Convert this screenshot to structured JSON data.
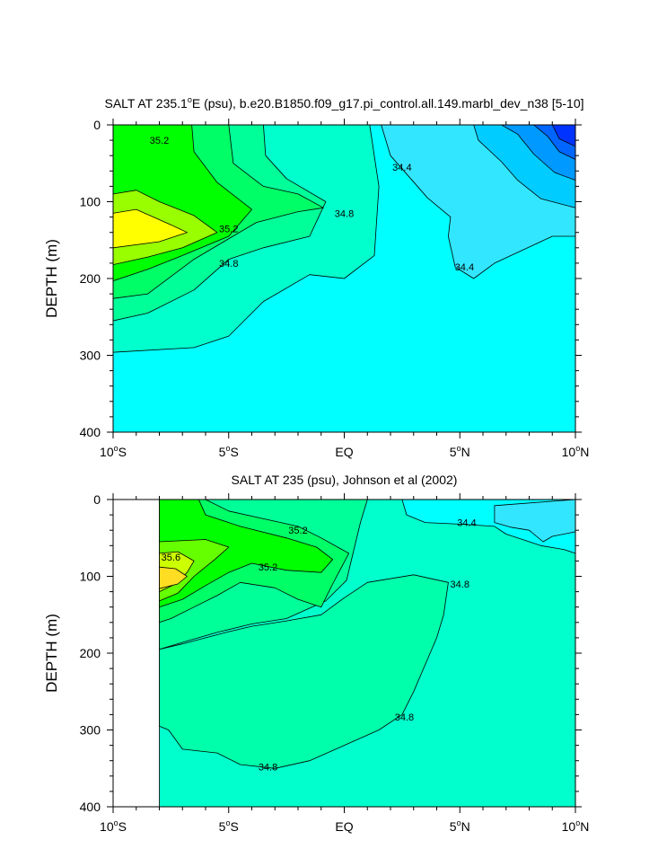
{
  "chart_data": [
    {
      "type": "heatmap",
      "title": "SALT AT 235.1°E (psu), b.e20.B1850.f09_g17.pi_control.all.149.marbl_dev_n38 [5-10]",
      "title_main": "SALT AT 235.1",
      "title_deg": "o",
      "title_rest": "E (psu), b.e20.B1850.f09_g17.pi_control.all.149.marbl_dev_n38 [5-10]",
      "ylabel": "DEPTH (m)",
      "xlabel": "",
      "xlim": [
        -10,
        10
      ],
      "ylim": [
        400,
        0
      ],
      "x_ticks": [
        {
          "v": -10,
          "num": "10",
          "sup": "o",
          "dir": "S"
        },
        {
          "v": -5,
          "num": "5",
          "sup": "o",
          "dir": "S"
        },
        {
          "v": 0,
          "num": "EQ",
          "sup": "",
          "dir": ""
        },
        {
          "v": 5,
          "num": "5",
          "sup": "o",
          "dir": "N"
        },
        {
          "v": 10,
          "num": "10",
          "sup": "o",
          "dir": "N"
        }
      ],
      "y_ticks": [
        {
          "v": 0,
          "label": "0"
        },
        {
          "v": 100,
          "label": "100"
        },
        {
          "v": 200,
          "label": "200"
        },
        {
          "v": 300,
          "label": "300"
        },
        {
          "v": 400,
          "label": "400"
        }
      ],
      "contour_labels": [
        {
          "text": "35.2",
          "x": -8.0,
          "y": 20
        },
        {
          "text": "35.2",
          "x": -5.0,
          "y": 135
        },
        {
          "text": "34.8",
          "x": -5.0,
          "y": 180
        },
        {
          "text": "34.8",
          "x": 0.0,
          "y": 115
        },
        {
          "text": "34.4",
          "x": 2.5,
          "y": 55
        },
        {
          "text": "34.4",
          "x": 5.2,
          "y": 185
        }
      ],
      "regions": [
        {
          "color": "#00ffff",
          "points": [
            [
              -10,
              0
            ],
            [
              10,
              0
            ],
            [
              10,
              400
            ],
            [
              -10,
              400
            ]
          ]
        },
        {
          "color": "#00ffcc",
          "points": [
            [
              -10,
              0
            ],
            [
              1.1,
              0
            ],
            [
              1.5,
              80
            ],
            [
              1.3,
              170
            ],
            [
              0,
              200
            ],
            [
              -1.5,
              195
            ],
            [
              -3.5,
              230
            ],
            [
              -5,
              275
            ],
            [
              -6.5,
              290
            ],
            [
              -10,
              296
            ]
          ]
        },
        {
          "color": "#00ff99",
          "points": [
            [
              -10,
              0
            ],
            [
              -3.5,
              0
            ],
            [
              -3.4,
              40
            ],
            [
              -2.5,
              70
            ],
            [
              -0.8,
              100
            ],
            [
              -1.5,
              145
            ],
            [
              -3.5,
              160
            ],
            [
              -5,
              175
            ],
            [
              -6.5,
              215
            ],
            [
              -8.5,
              245
            ],
            [
              -10,
              255
            ]
          ]
        },
        {
          "color": "#00ff66",
          "points": [
            [
              -10,
              0
            ],
            [
              -5,
              0
            ],
            [
              -4.8,
              50
            ],
            [
              -3.5,
              80
            ],
            [
              -2,
              90
            ],
            [
              -0.9,
              108
            ],
            [
              -2,
              113
            ],
            [
              -3.8,
              127
            ],
            [
              -6.5,
              175
            ],
            [
              -8.5,
              220
            ],
            [
              -10,
              226
            ]
          ]
        },
        {
          "color": "#00ff00",
          "points": [
            [
              -10,
              0
            ],
            [
              -6.6,
              0
            ],
            [
              -6.5,
              35
            ],
            [
              -5.5,
              75
            ],
            [
              -4,
              110
            ],
            [
              -5,
              145
            ],
            [
              -7,
              170
            ],
            [
              -8.5,
              188
            ],
            [
              -10,
              203
            ]
          ]
        },
        {
          "color": "#99ff00",
          "points": [
            [
              -10,
              90
            ],
            [
              -9,
              85
            ],
            [
              -8,
              100
            ],
            [
              -6.5,
              118
            ],
            [
              -5.5,
              140
            ],
            [
              -7,
              160
            ],
            [
              -8.5,
              172
            ],
            [
              -10,
              182
            ]
          ]
        },
        {
          "color": "#ffff00",
          "points": [
            [
              -10,
              115
            ],
            [
              -9,
              110
            ],
            [
              -7.5,
              130
            ],
            [
              -6.8,
              140
            ],
            [
              -8,
              152
            ],
            [
              -10,
              160
            ]
          ]
        },
        {
          "color": "#33e6ff",
          "points": [
            [
              1.1,
              0
            ],
            [
              10,
              0
            ],
            [
              10,
              145
            ],
            [
              9,
              145
            ],
            [
              6.5,
              180
            ],
            [
              5.6,
              200
            ],
            [
              4.8,
              185
            ],
            [
              4.5,
              145
            ],
            [
              4.6,
              120
            ],
            [
              3.6,
              95
            ],
            [
              2,
              40
            ],
            [
              1.6,
              0
            ]
          ]
        },
        {
          "color": "#00ccff",
          "points": [
            [
              5.6,
              0
            ],
            [
              10,
              0
            ],
            [
              10,
              108
            ],
            [
              8.5,
              96
            ],
            [
              7.5,
              72
            ],
            [
              6.8,
              48
            ],
            [
              5.8,
              20
            ]
          ]
        },
        {
          "color": "#0099ff",
          "points": [
            [
              6.8,
              0
            ],
            [
              10,
              0
            ],
            [
              10,
              72
            ],
            [
              9.1,
              62
            ],
            [
              8.2,
              38
            ],
            [
              7.5,
              12
            ]
          ]
        },
        {
          "color": "#0066ff",
          "points": [
            [
              8.2,
              0
            ],
            [
              10,
              0
            ],
            [
              10,
              45
            ],
            [
              9.3,
              35
            ],
            [
              8.8,
              15
            ]
          ]
        },
        {
          "color": "#0033ff",
          "points": [
            [
              9.0,
              0
            ],
            [
              10,
              0
            ],
            [
              10,
              28
            ],
            [
              9.3,
              18
            ]
          ]
        }
      ]
    },
    {
      "type": "heatmap",
      "title": "SALT AT 235 (psu), Johnson et al (2002)",
      "ylabel": "DEPTH (m)",
      "xlabel": "",
      "xlim": [
        -10,
        10
      ],
      "ylim": [
        400,
        0
      ],
      "x_ticks": [
        {
          "v": -10,
          "num": "10",
          "sup": "o",
          "dir": "S"
        },
        {
          "v": -5,
          "num": "5",
          "sup": "o",
          "dir": "S"
        },
        {
          "v": 0,
          "num": "EQ",
          "sup": "",
          "dir": ""
        },
        {
          "v": 5,
          "num": "5",
          "sup": "o",
          "dir": "N"
        },
        {
          "v": 10,
          "num": "10",
          "sup": "o",
          "dir": "N"
        }
      ],
      "y_ticks": [
        {
          "v": 0,
          "label": "0"
        },
        {
          "v": 100,
          "label": "100"
        },
        {
          "v": 200,
          "label": "200"
        },
        {
          "v": 300,
          "label": "300"
        },
        {
          "v": 400,
          "label": "400"
        }
      ],
      "data_xlim": [
        -8,
        10
      ],
      "contour_labels": [
        {
          "text": "35.2",
          "x": -2.0,
          "y": 40
        },
        {
          "text": "35.6",
          "x": -7.5,
          "y": 75
        },
        {
          "text": "35.2",
          "x": -3.3,
          "y": 88
        },
        {
          "text": "34.8",
          "x": 5.0,
          "y": 110
        },
        {
          "text": "34.4",
          "x": 5.3,
          "y": 30
        },
        {
          "text": "34.8",
          "x": 2.6,
          "y": 283
        },
        {
          "text": "34.8",
          "x": -3.3,
          "y": 348
        }
      ],
      "regions": [
        {
          "color": "#00ffcc",
          "points": [
            [
              -8,
              0
            ],
            [
              10,
              0
            ],
            [
              10,
              400
            ],
            [
              -8,
              400
            ]
          ]
        },
        {
          "color": "#00ffff",
          "points": [
            [
              2.5,
              0
            ],
            [
              10,
              0
            ],
            [
              10,
              70
            ],
            [
              9.5,
              65
            ],
            [
              8.5,
              60
            ],
            [
              7,
              45
            ],
            [
              6.5,
              35
            ],
            [
              5,
              32
            ],
            [
              3.5,
              30
            ],
            [
              2.7,
              20
            ]
          ]
        },
        {
          "color": "#33e6ff",
          "points": [
            [
              6.5,
              8
            ],
            [
              10,
              0
            ],
            [
              10,
              42
            ],
            [
              9,
              48
            ],
            [
              8.6,
              55
            ],
            [
              8,
              40
            ],
            [
              7.2,
              36
            ],
            [
              6.5,
              30
            ]
          ]
        },
        {
          "color": "#00ffaa",
          "points": [
            [
              -8,
              195
            ],
            [
              -7,
              188
            ],
            [
              -6,
              180
            ],
            [
              -5,
              172
            ],
            [
              -4,
              165
            ],
            [
              -2.5,
              158
            ],
            [
              -1,
              150
            ],
            [
              0,
              128
            ],
            [
              1,
              108
            ],
            [
              3,
              98
            ],
            [
              4.5,
              108
            ],
            [
              4.3,
              150
            ],
            [
              4,
              180
            ],
            [
              3,
              250
            ],
            [
              2.5,
              280
            ],
            [
              1.5,
              300
            ],
            [
              0,
              320
            ],
            [
              -1.5,
              340
            ],
            [
              -3,
              350
            ],
            [
              -4.5,
              345
            ],
            [
              -5.5,
              330
            ],
            [
              -7,
              325
            ],
            [
              -7.6,
              300
            ],
            [
              -8,
              295
            ]
          ]
        },
        {
          "color": "#00ff99",
          "points": [
            [
              -8,
              0
            ],
            [
              1,
              0
            ],
            [
              0.7,
              30
            ],
            [
              0.3,
              80
            ],
            [
              0.1,
              105
            ],
            [
              -0.8,
              132
            ],
            [
              -2.5,
              155
            ],
            [
              -4,
              162
            ],
            [
              -5.5,
              173
            ],
            [
              -7,
              186
            ],
            [
              -8,
              195
            ]
          ]
        },
        {
          "color": "#00ff66",
          "points": [
            [
              -8,
              0
            ],
            [
              -6,
              0
            ],
            [
              -5,
              15
            ],
            [
              -3.5,
              25
            ],
            [
              -2,
              35
            ],
            [
              -1,
              50
            ],
            [
              0.2,
              70
            ],
            [
              -0.5,
              110
            ],
            [
              -1,
              140
            ],
            [
              -2,
              130
            ],
            [
              -3,
              115
            ],
            [
              -4.5,
              108
            ],
            [
              -5.5,
              125
            ],
            [
              -6.5,
              140
            ],
            [
              -7.5,
              155
            ],
            [
              -8,
              160
            ]
          ]
        },
        {
          "color": "#00ff00",
          "points": [
            [
              -8,
              0
            ],
            [
              -6.3,
              0
            ],
            [
              -6,
              20
            ],
            [
              -4.5,
              35
            ],
            [
              -2.5,
              50
            ],
            [
              -1.2,
              62
            ],
            [
              -0.5,
              78
            ],
            [
              -1,
              95
            ],
            [
              -2.5,
              92
            ],
            [
              -4,
              83
            ],
            [
              -5,
              95
            ],
            [
              -6,
              112
            ],
            [
              -7,
              130
            ],
            [
              -8,
              140
            ]
          ]
        },
        {
          "color": "#66ff00",
          "points": [
            [
              -8,
              55
            ],
            [
              -6,
              52
            ],
            [
              -5,
              62
            ],
            [
              -5.6,
              78
            ],
            [
              -6.5,
              100
            ],
            [
              -7.2,
              122
            ],
            [
              -8,
              132
            ]
          ]
        },
        {
          "color": "#ccff00",
          "points": [
            [
              -8,
              70
            ],
            [
              -7.2,
              68
            ],
            [
              -6.5,
              80
            ],
            [
              -6.8,
              95
            ],
            [
              -7.3,
              110
            ],
            [
              -8,
              120
            ]
          ]
        },
        {
          "color": "#ffdd22",
          "points": [
            [
              -8,
              88
            ],
            [
              -7.3,
              90
            ],
            [
              -6.8,
              100
            ],
            [
              -7.2,
              110
            ],
            [
              -8,
              116
            ]
          ]
        }
      ]
    }
  ]
}
